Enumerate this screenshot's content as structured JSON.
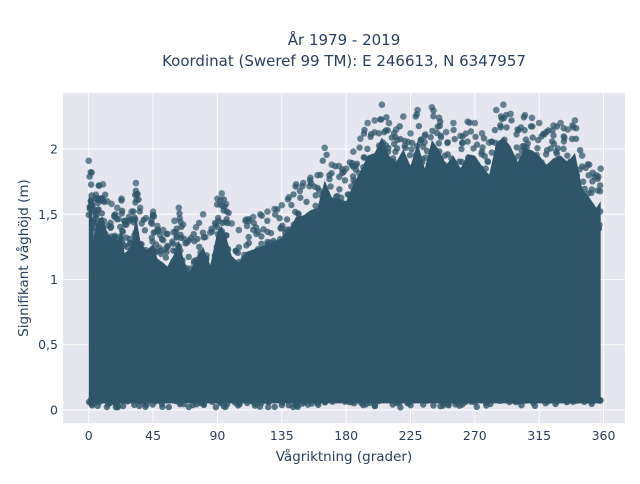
{
  "chart_data": {
    "type": "scatter",
    "title": "År 1979 - 2019",
    "subtitle": "Koordinat (Sweref 99 TM): E 246613, N 6347957",
    "xlabel": "Vågriktning (grader)",
    "ylabel": "Signifikant våghöjd (m)",
    "xlim": [
      -18,
      375
    ],
    "ylim": [
      -0.1,
      2.43
    ],
    "xticks": [
      0,
      45,
      90,
      135,
      180,
      225,
      270,
      315,
      360
    ],
    "xtick_labels": [
      "0",
      "45",
      "90",
      "135",
      "180",
      "225",
      "270",
      "315",
      "360"
    ],
    "yticks": [
      0,
      0.5,
      1,
      1.5,
      2
    ],
    "ytick_labels": [
      "0",
      "0,5",
      "1",
      "1,5",
      "2"
    ],
    "grid": true,
    "legend": "none",
    "marker_color": "#2f5569",
    "plot_bg": "#e5e6ef",
    "series": [
      {
        "values": [
          [
            0,
            1.91
          ],
          [
            2,
            1.82
          ],
          [
            3,
            1.55
          ],
          [
            5,
            1.65
          ],
          [
            7,
            1.72
          ],
          [
            10,
            1.73
          ],
          [
            13,
            1.6
          ],
          [
            16,
            1.58
          ],
          [
            20,
            1.55
          ],
          [
            23,
            1.62
          ],
          [
            25,
            1.45
          ],
          [
            28,
            1.48
          ],
          [
            30,
            1.52
          ],
          [
            33,
            1.74
          ],
          [
            36,
            1.55
          ],
          [
            40,
            1.47
          ],
          [
            45,
            1.52
          ],
          [
            48,
            1.41
          ],
          [
            52,
            1.38
          ],
          [
            55,
            1.35
          ],
          [
            60,
            1.45
          ],
          [
            63,
            1.55
          ],
          [
            66,
            1.42
          ],
          [
            70,
            1.3
          ],
          [
            75,
            1.4
          ],
          [
            80,
            1.5
          ],
          [
            85,
            1.36
          ],
          [
            90,
            1.62
          ],
          [
            93,
            1.66
          ],
          [
            96,
            1.58
          ],
          [
            100,
            1.43
          ],
          [
            105,
            1.38
          ],
          [
            110,
            1.46
          ],
          [
            115,
            1.48
          ],
          [
            120,
            1.5
          ],
          [
            125,
            1.52
          ],
          [
            130,
            1.54
          ],
          [
            135,
            1.57
          ],
          [
            140,
            1.63
          ],
          [
            145,
            1.73
          ],
          [
            150,
            1.74
          ],
          [
            155,
            1.78
          ],
          [
            160,
            1.8
          ],
          [
            165,
            2.01
          ],
          [
            170,
            1.88
          ],
          [
            175,
            1.87
          ],
          [
            180,
            1.85
          ],
          [
            185,
            1.98
          ],
          [
            190,
            2.08
          ],
          [
            195,
            2.2
          ],
          [
            200,
            2.22
          ],
          [
            205,
            2.34
          ],
          [
            210,
            2.2
          ],
          [
            215,
            2.15
          ],
          [
            220,
            2.25
          ],
          [
            225,
            2.12
          ],
          [
            230,
            2.3
          ],
          [
            235,
            2.1
          ],
          [
            240,
            2.32
          ],
          [
            245,
            2.24
          ],
          [
            250,
            2.13
          ],
          [
            255,
            2.2
          ],
          [
            260,
            2.1
          ],
          [
            265,
            2.21
          ],
          [
            270,
            2.2
          ],
          [
            275,
            2.12
          ],
          [
            280,
            2.05
          ],
          [
            285,
            2.3
          ],
          [
            290,
            2.34
          ],
          [
            295,
            2.27
          ],
          [
            300,
            2.15
          ],
          [
            305,
            2.26
          ],
          [
            310,
            2.24
          ],
          [
            315,
            2.2
          ],
          [
            320,
            2.13
          ],
          [
            325,
            2.18
          ],
          [
            330,
            2.2
          ],
          [
            335,
            2.15
          ],
          [
            340,
            2.22
          ],
          [
            345,
            1.95
          ],
          [
            350,
            1.88
          ],
          [
            355,
            1.8
          ],
          [
            358,
            1.85
          ]
        ]
      }
    ]
  }
}
